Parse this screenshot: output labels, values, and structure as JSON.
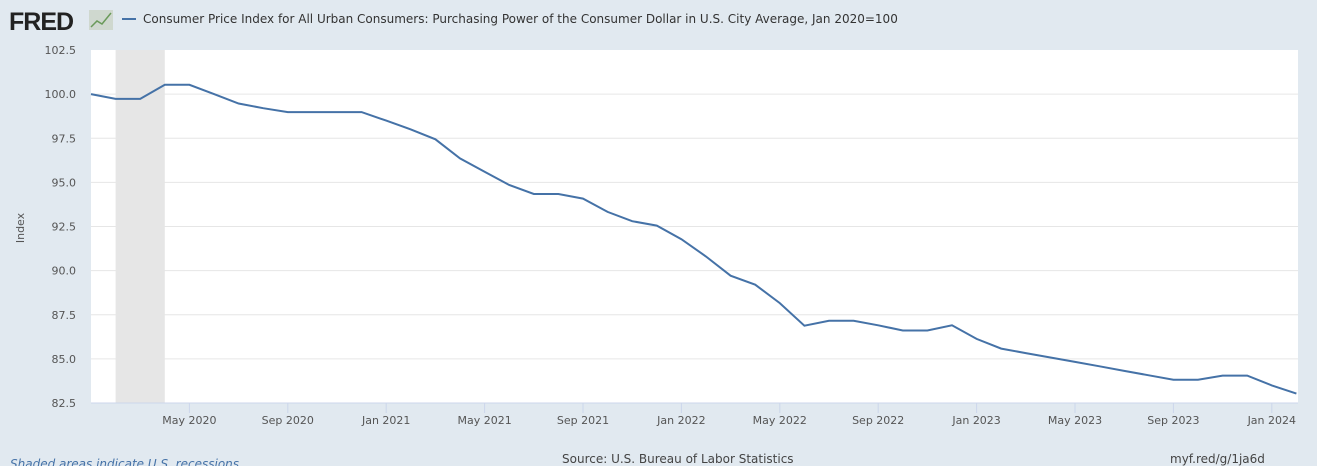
{
  "header": {
    "logo": "FRED",
    "legend_label": "Consumer Price Index for All Urban Consumers: Purchasing Power of the Consumer Dollar in U.S. City Average, Jan 2020=100"
  },
  "footer": {
    "recession_note": "Shaded areas indicate U.S. recessions",
    "source": "Source: U.S. Bureau of Labor Statistics",
    "short_url": "myf.red/g/1ja6d"
  },
  "colors": {
    "line": "#4572a7",
    "background": "#e1e9f0",
    "plot": "#ffffff",
    "recession": "#e6e6e6",
    "grid": "#e6e6e6"
  },
  "chart_data": {
    "type": "line",
    "title": "Consumer Price Index for All Urban Consumers: Purchasing Power of the Consumer Dollar in U.S. City Average, Jan 2020=100",
    "ylabel": "Index",
    "xlabel": "",
    "ylim": [
      82.5,
      102.5
    ],
    "yticks": [
      "82.5",
      "85.0",
      "87.5",
      "90.0",
      "92.5",
      "95.0",
      "97.5",
      "100.0",
      "102.5"
    ],
    "xticks": [
      "May 2020",
      "Sep 2020",
      "Jan 2021",
      "May 2021",
      "Sep 2021",
      "Jan 2022",
      "May 2022",
      "Sep 2022",
      "Jan 2023",
      "May 2023",
      "Sep 2023",
      "Jan 2024"
    ],
    "grid": true,
    "legend": "top-left",
    "recessions": [
      {
        "start": "2020-02",
        "end": "2020-04"
      }
    ],
    "series": [
      {
        "name": "Consumer Price Index for All Urban Consumers: Purchasing Power of the Consumer Dollar in U.S. City Average, Jan 2020=100",
        "x": [
          "2020-01",
          "2020-02",
          "2020-03",
          "2020-04",
          "2020-05",
          "2020-06",
          "2020-07",
          "2020-08",
          "2020-09",
          "2020-10",
          "2020-11",
          "2020-12",
          "2021-01",
          "2021-02",
          "2021-03",
          "2021-04",
          "2021-05",
          "2021-06",
          "2021-07",
          "2021-08",
          "2021-09",
          "2021-10",
          "2021-11",
          "2021-12",
          "2022-01",
          "2022-02",
          "2022-03",
          "2022-04",
          "2022-05",
          "2022-06",
          "2022-07",
          "2022-08",
          "2022-09",
          "2022-10",
          "2022-11",
          "2022-12",
          "2023-01",
          "2023-02",
          "2023-03",
          "2023-04",
          "2023-05",
          "2023-06",
          "2023-07",
          "2023-08",
          "2023-09",
          "2023-10",
          "2023-11",
          "2023-12",
          "2024-01",
          "2024-02"
        ],
        "values": [
          100.0,
          99.73,
          99.73,
          100.53,
          100.53,
          100.0,
          99.47,
          99.2,
          98.98,
          98.98,
          98.98,
          98.98,
          98.5,
          98.0,
          97.44,
          96.36,
          95.6,
          94.85,
          94.34,
          94.34,
          94.08,
          93.33,
          92.8,
          92.55,
          91.78,
          90.8,
          89.71,
          89.2,
          88.16,
          86.88,
          87.16,
          87.16,
          86.9,
          86.61,
          86.61,
          86.9,
          86.13,
          85.58,
          85.33,
          85.08,
          84.83,
          84.58,
          84.32,
          84.07,
          83.82,
          83.82,
          84.05,
          84.05,
          83.5,
          83.03
        ]
      }
    ]
  }
}
